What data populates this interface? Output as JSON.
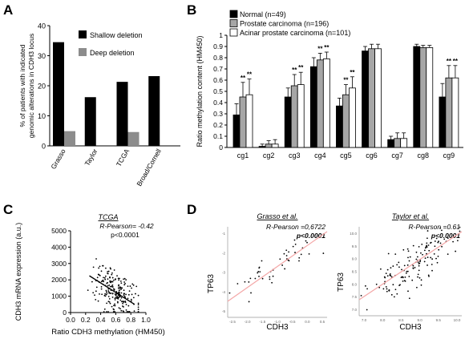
{
  "panels": {
    "A": {
      "letter": "A"
    },
    "B": {
      "letter": "B"
    },
    "C": {
      "letter": "C"
    },
    "D": {
      "letter": "D"
    }
  },
  "chart_data": [
    {
      "id": "A",
      "type": "bar",
      "ylabel_lines": [
        "% of patients with indicated",
        "genomic alterations in CDH3 locus"
      ],
      "categories": [
        "Grasso",
        "Taylor",
        "TCGA",
        "Broad/Cornell"
      ],
      "series": [
        {
          "name": "Shallow deletion",
          "color": "#000000",
          "values": [
            34.5,
            16.2,
            21.3,
            23.2
          ]
        },
        {
          "name": "Deep deletion",
          "color": "#8c8c8c",
          "values": [
            4.9,
            null,
            4.6,
            null
          ]
        }
      ],
      "ylim": [
        0,
        40
      ],
      "yticks": [
        0,
        10,
        20,
        30,
        40
      ],
      "legend": "top-right"
    },
    {
      "id": "B",
      "type": "bar",
      "ylabel_lines": [
        "Ratio methylation  content  (HM450)"
      ],
      "categories": [
        "cg1",
        "cg2",
        "cg3",
        "cg4",
        "cg5",
        "cg6",
        "cg7",
        "cg8",
        "cg9"
      ],
      "series": [
        {
          "name": "Normal (n=49)",
          "color": "#000000",
          "values": [
            0.29,
            0.01,
            0.45,
            0.72,
            0.37,
            0.86,
            0.07,
            0.9,
            0.45
          ],
          "errors": [
            0.1,
            0.02,
            0.08,
            0.08,
            0.07,
            0.04,
            0.03,
            0.02,
            0.12
          ]
        },
        {
          "name": "Prostate carcinoma (n=196)",
          "color": "#a6a6a6",
          "values": [
            0.45,
            0.03,
            0.55,
            0.78,
            0.47,
            0.88,
            0.08,
            0.89,
            0.62
          ],
          "errors": [
            0.13,
            0.03,
            0.1,
            0.06,
            0.09,
            0.04,
            0.05,
            0.02,
            0.11
          ]
        },
        {
          "name": "Acinar prostate carcinoma (n=101)",
          "color": "#ffffff",
          "values": [
            0.47,
            0.03,
            0.56,
            0.79,
            0.53,
            0.88,
            0.08,
            0.89,
            0.62
          ],
          "errors": [
            0.14,
            0.04,
            0.11,
            0.06,
            0.1,
            0.04,
            0.05,
            0.02,
            0.11
          ]
        }
      ],
      "significance": [
        "**",
        "",
        "**",
        "**",
        "**",
        "",
        "",
        "",
        "**"
      ],
      "ylim": [
        0,
        1
      ],
      "yticks": [
        0,
        0.1,
        0.2,
        0.3,
        0.4,
        0.5,
        0.6,
        0.7,
        0.8,
        0.9,
        1
      ],
      "legend": "top-left"
    },
    {
      "id": "C",
      "type": "scatter",
      "title": "TCGA",
      "annotations": [
        "R-Pearson= -0.42",
        "p<0.0001"
      ],
      "xlabel": "Ratio CDH3 methylation (HM450)",
      "ylabel": "CDH3 mRNA expression (a.u.)",
      "xlim": [
        0,
        1.0
      ],
      "ylim": [
        0,
        5000
      ],
      "xticks": [
        0.0,
        0.2,
        0.4,
        0.6,
        0.8,
        1.0
      ],
      "yticks": [
        0,
        1000,
        2000,
        3000,
        4000,
        5000
      ],
      "fit_line": {
        "x": [
          0.25,
          0.85
        ],
        "y": [
          2250,
          500
        ],
        "color": "#000000"
      },
      "point_cloud": {
        "n": 220,
        "x_range": [
          0.2,
          0.9
        ],
        "y_range": [
          0,
          4800
        ],
        "seed": 7
      }
    },
    {
      "id": "D1",
      "type": "scatter",
      "title": "Grasso et al.",
      "annotations": [
        "R-Pearson =0,6722",
        "p<0.0001"
      ],
      "xlabel": "CDH3",
      "ylabel": "TP63",
      "fit_line": {
        "color": "#f4a7a7"
      },
      "point_cloud": {
        "n": 45,
        "seed": 11
      }
    },
    {
      "id": "D2",
      "type": "scatter",
      "title": "Taylor et al.",
      "annotations": [
        "R-Pearson =0.61",
        "p<0.0001"
      ],
      "xlabel": "CDH3",
      "ylabel": "TP63",
      "fit_line": {
        "color": "#f4a7a7"
      },
      "point_cloud": {
        "n": 140,
        "seed": 23
      }
    }
  ]
}
